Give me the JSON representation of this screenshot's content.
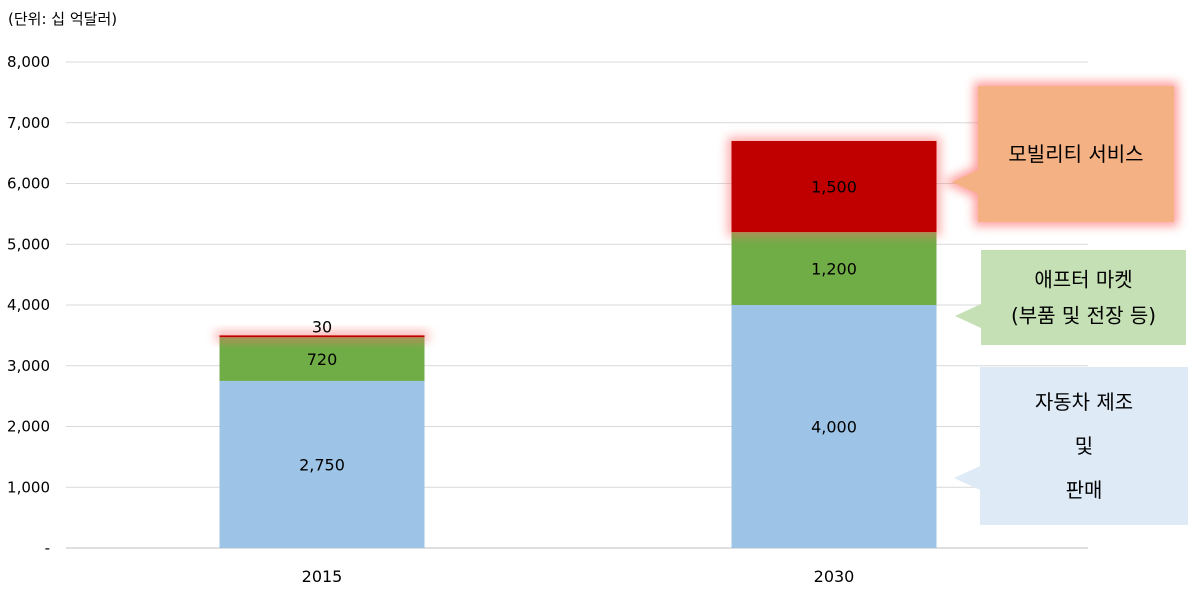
{
  "chart_data": {
    "type": "bar",
    "stacked": true,
    "unit_label": "(단위: 십 억달러)",
    "categories": [
      "2015",
      "2030"
    ],
    "ylim": [
      0,
      8000
    ],
    "yticks": [
      0,
      1000,
      2000,
      3000,
      4000,
      5000,
      6000,
      7000,
      8000
    ],
    "ytick_labels": [
      "-",
      "1,000",
      "2,000",
      "3,000",
      "4,000",
      "5,000",
      "6,000",
      "7,000",
      "8,000"
    ],
    "grid": true,
    "series": [
      {
        "values": [
          2750,
          4000
        ],
        "value_labels": [
          "2,750",
          "4,000"
        ],
        "color": "#9DC3E6"
      },
      {
        "values": [
          720,
          1200
        ],
        "value_labels": [
          "720",
          "1,200"
        ],
        "color": "#70AD47"
      },
      {
        "values": [
          30,
          1500
        ],
        "value_labels": [
          "30",
          "1,500"
        ],
        "color": "#C00000"
      }
    ],
    "callouts": [
      {
        "lines": [
          "모빌리티 서비스"
        ],
        "fill": "#F4B183",
        "glow": true
      },
      {
        "lines": [
          "애프터 마켓",
          "(부품 및 전장 등)"
        ],
        "fill": "#C5E0B4",
        "glow": false
      },
      {
        "lines": [
          "자동차 제조",
          "및",
          "판매"
        ],
        "fill": "#DEEBF7",
        "glow": false
      }
    ]
  }
}
